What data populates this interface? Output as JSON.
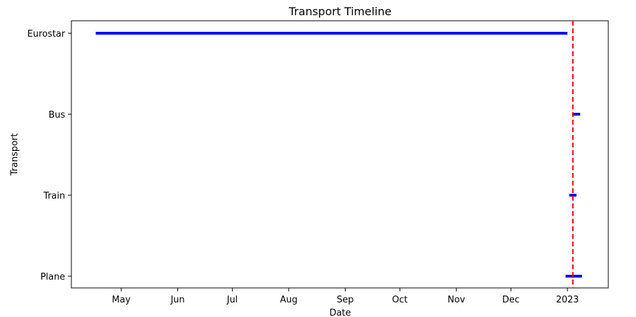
{
  "chart_data": {
    "type": "timeline",
    "title": "Transport Timeline",
    "xlabel": "Date",
    "ylabel": "Transport",
    "x_axis_type": "date",
    "xlim": [
      "2023-03-19",
      "2023-01-20"
    ],
    "x_ticks": [
      {
        "date": "2022-05-01",
        "label": "May"
      },
      {
        "date": "2022-06-01",
        "label": "Jun"
      },
      {
        "date": "2022-07-01",
        "label": "Jul"
      },
      {
        "date": "2022-08-01",
        "label": "Aug"
      },
      {
        "date": "2022-09-01",
        "label": "Sep"
      },
      {
        "date": "2022-10-01",
        "label": "Oct"
      },
      {
        "date": "2022-11-01",
        "label": "Nov"
      },
      {
        "date": "2022-12-01",
        "label": "Dec"
      },
      {
        "date": "2023-01-01",
        "label": "2023"
      }
    ],
    "categories": [
      "Plane",
      "Train",
      "Bus",
      "Eurostar"
    ],
    "segments": [
      {
        "category": "Eurostar",
        "start": "2022-04-17",
        "end": "2023-01-01"
      },
      {
        "category": "Bus",
        "start": "2023-01-04",
        "end": "2023-01-08"
      },
      {
        "category": "Train",
        "start": "2023-01-02",
        "end": "2023-01-06"
      },
      {
        "category": "Plane",
        "start": "2022-12-31",
        "end": "2023-01-09"
      }
    ],
    "reference_line": {
      "date": "2023-01-04",
      "color": "#ff0000",
      "style": "dashed"
    },
    "segment_color": "#0000ff",
    "grid": false,
    "legend": "none"
  }
}
